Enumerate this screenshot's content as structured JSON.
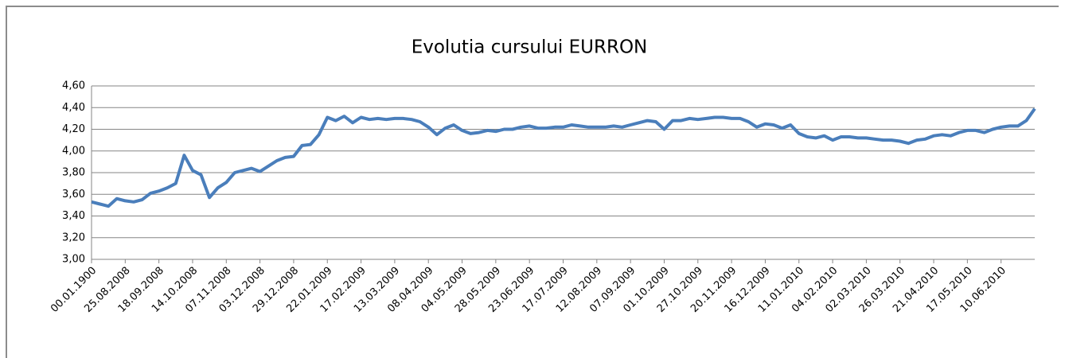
{
  "chart_data": {
    "type": "line",
    "title": "Evolutia cursului EURRON",
    "categories": [
      "00.01.1900",
      null,
      null,
      null,
      "25.08.2008",
      null,
      null,
      null,
      "18.09.2008",
      null,
      null,
      null,
      "14.10.2008",
      null,
      null,
      null,
      "07.11.2008",
      null,
      null,
      null,
      "03.12.2008",
      null,
      null,
      null,
      "29.12.2008",
      null,
      null,
      null,
      "22.01.2009",
      null,
      null,
      null,
      "17.02.2009",
      null,
      null,
      null,
      "13.03.2009",
      null,
      null,
      null,
      "08.04.2009",
      null,
      null,
      null,
      "04.05.2009",
      null,
      null,
      null,
      "28.05.2009",
      null,
      null,
      null,
      "23.06.2009",
      null,
      null,
      null,
      "17.07.2009",
      null,
      null,
      null,
      "12.08.2009",
      null,
      null,
      null,
      "07.09.2009",
      null,
      null,
      null,
      "01.10.2009",
      null,
      null,
      null,
      "27.10.2009",
      null,
      null,
      null,
      "20.11.2009",
      null,
      null,
      null,
      "16.12.2009",
      null,
      null,
      null,
      "11.01.2010",
      null,
      null,
      null,
      "04.02.2010",
      null,
      null,
      null,
      "02.03.2010",
      null,
      null,
      null,
      "26.03.2010",
      null,
      null,
      null,
      "21.04.2010",
      null,
      null,
      null,
      "17.05.2010",
      null,
      null,
      null,
      "10.06.2010",
      null,
      null,
      null,
      null
    ],
    "values": [
      3.53,
      3.51,
      3.49,
      3.56,
      3.54,
      3.53,
      3.55,
      3.61,
      3.63,
      3.66,
      3.7,
      3.96,
      3.82,
      3.78,
      3.57,
      3.66,
      3.71,
      3.8,
      3.82,
      3.84,
      3.81,
      3.86,
      3.91,
      3.94,
      3.95,
      4.05,
      4.06,
      4.15,
      4.31,
      4.28,
      4.32,
      4.26,
      4.31,
      4.29,
      4.3,
      4.29,
      4.3,
      4.3,
      4.29,
      4.27,
      4.22,
      4.15,
      4.21,
      4.24,
      4.19,
      4.16,
      4.17,
      4.19,
      4.18,
      4.2,
      4.2,
      4.22,
      4.23,
      4.21,
      4.21,
      4.22,
      4.22,
      4.24,
      4.23,
      4.22,
      4.22,
      4.22,
      4.23,
      4.22,
      4.24,
      4.26,
      4.28,
      4.27,
      4.2,
      4.28,
      4.28,
      4.3,
      4.29,
      4.3,
      4.31,
      4.31,
      4.3,
      4.3,
      4.27,
      4.22,
      4.25,
      4.24,
      4.21,
      4.24,
      4.16,
      4.13,
      4.12,
      4.14,
      4.1,
      4.13,
      4.13,
      4.12,
      4.12,
      4.11,
      4.1,
      4.1,
      4.09,
      4.07,
      4.1,
      4.11,
      4.14,
      4.15,
      4.14,
      4.17,
      4.19,
      4.19,
      4.17,
      4.2,
      4.22,
      4.23,
      4.23,
      4.28,
      4.39
    ],
    "color": "#4a7ebb",
    "ylim": [
      3.0,
      4.6
    ],
    "yticks": [
      {
        "value": 3.0,
        "label": "3,00"
      },
      {
        "value": 3.2,
        "label": "3,20"
      },
      {
        "value": 3.4,
        "label": "3,40"
      },
      {
        "value": 3.6,
        "label": "3,60"
      },
      {
        "value": 3.8,
        "label": "3,80"
      },
      {
        "value": 4.0,
        "label": "4,00"
      },
      {
        "value": 4.2,
        "label": "4,20"
      },
      {
        "value": 4.4,
        "label": "4,40"
      },
      {
        "value": 4.6,
        "label": "4,60"
      }
    ],
    "grid": true
  }
}
